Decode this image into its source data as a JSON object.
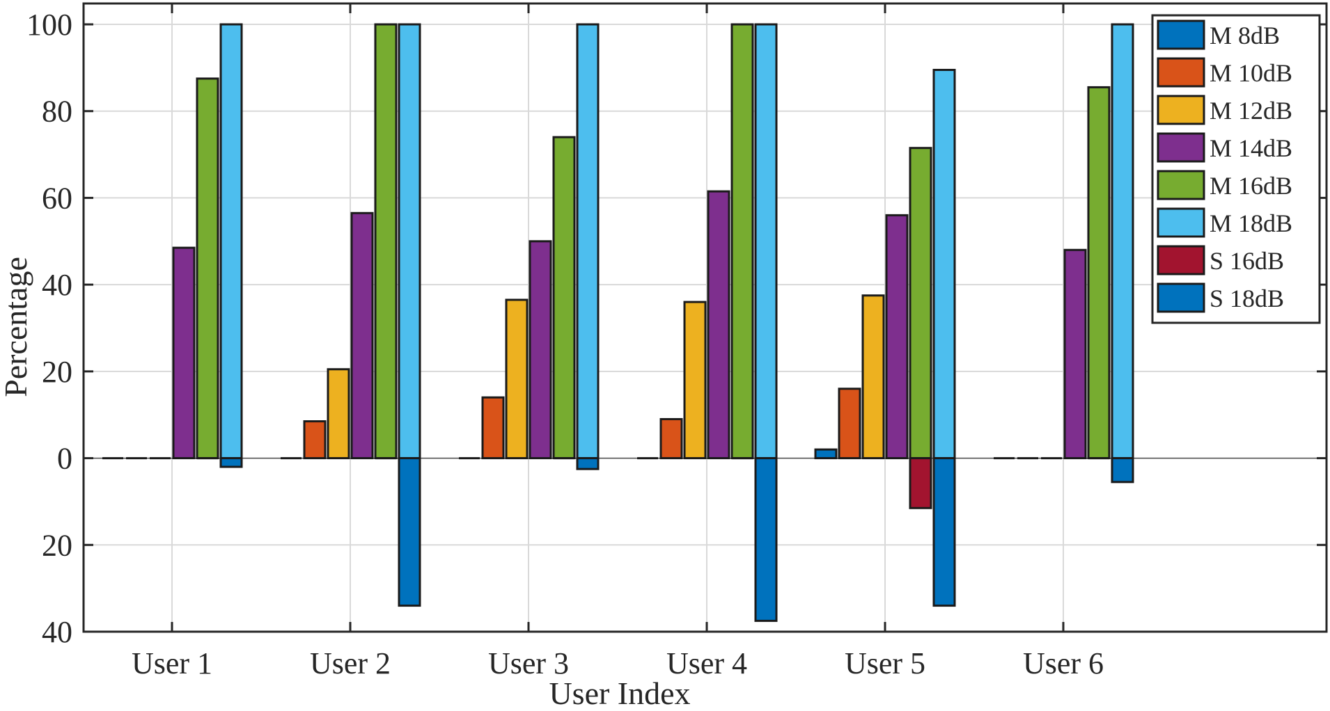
{
  "chart_data": {
    "type": "bar",
    "title": "",
    "xlabel": "User Index",
    "ylabel": "Percentage",
    "ylim": [
      -40,
      100
    ],
    "yticks": [
      100,
      80,
      60,
      40,
      20,
      0,
      -20,
      -40
    ],
    "ytick_labels": [
      "100",
      "80",
      "60",
      "40",
      "20",
      "0",
      "20",
      "40"
    ],
    "categories": [
      "User 1",
      "User 2",
      "User 3",
      "User 4",
      "User 5",
      "User 6"
    ],
    "grid": true,
    "legend_position": "top-right",
    "series": [
      {
        "name": "M 8dB",
        "color": "#0072BD",
        "values": [
          0,
          0,
          0,
          0,
          2,
          0
        ]
      },
      {
        "name": "M 10dB",
        "color": "#D95319",
        "values": [
          0,
          8.5,
          14,
          9,
          16,
          0
        ]
      },
      {
        "name": "M 12dB",
        "color": "#EDB120",
        "values": [
          0,
          20.5,
          36.5,
          36,
          37.5,
          0
        ]
      },
      {
        "name": "M 14dB",
        "color": "#7E2F8E",
        "values": [
          48.5,
          56.5,
          50,
          61.5,
          56,
          48
        ]
      },
      {
        "name": "M 16dB",
        "color": "#77AC30",
        "values": [
          87.5,
          100,
          74,
          100,
          71.5,
          85.5
        ]
      },
      {
        "name": "M 18dB",
        "color": "#4DBEEE",
        "values": [
          100,
          100,
          100,
          100,
          89.5,
          100
        ]
      },
      {
        "name": "S 16dB",
        "color": "#A2142F",
        "values": [
          0,
          0,
          0,
          0,
          -11.5,
          0
        ]
      },
      {
        "name": "S 18dB",
        "color": "#0072BD",
        "values": [
          -2,
          -34,
          -2.5,
          -37.5,
          -34,
          -5.5
        ]
      }
    ],
    "negative_bar_x_offsets": {
      "S 16dB": 4,
      "S 18dB": 5
    }
  }
}
